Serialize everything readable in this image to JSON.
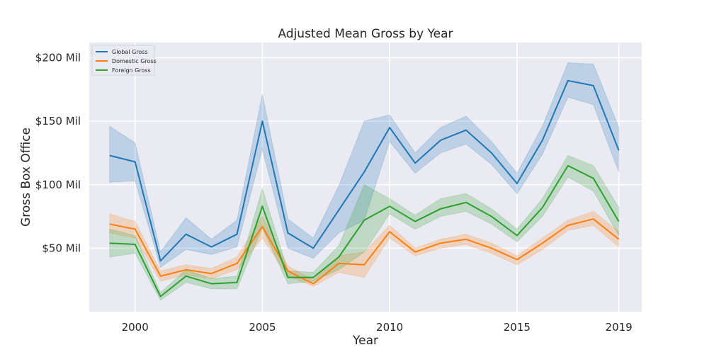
{
  "chart_data": {
    "type": "line",
    "title": "Adjusted Mean Gross by Year",
    "xlabel": "Year",
    "ylabel": "Gross Box Office",
    "xlim": [
      1998.2,
      2019.9
    ],
    "ylim": [
      0,
      212
    ],
    "x_ticks": [
      2000,
      2005,
      2010,
      2015,
      2019
    ],
    "x_tick_labels": [
      "2000",
      "2005",
      "2010",
      "2015",
      "2019"
    ],
    "y_ticks": [
      50,
      100,
      150,
      200
    ],
    "y_tick_labels": [
      "$50 Mil",
      "$100 Mil",
      "$150 Mil",
      "$200 Mil"
    ],
    "grid": true,
    "legend": "top-left",
    "x": [
      1999,
      2000,
      2001,
      2002,
      2003,
      2004,
      2005,
      2006,
      2007,
      2008,
      2009,
      2010,
      2011,
      2012,
      2013,
      2014,
      2015,
      2016,
      2017,
      2018,
      2019
    ],
    "series": [
      {
        "name": "Global Gross",
        "color": "#1f77b4",
        "values": [
          123,
          118,
          40,
          61,
          51,
          61,
          150,
          62,
          50,
          80,
          110,
          145,
          117,
          135,
          143,
          125,
          101,
          135,
          182,
          178,
          127
        ],
        "lower": [
          102,
          103,
          35,
          49,
          45,
          51,
          128,
          50,
          42,
          62,
          72,
          134,
          109,
          125,
          132,
          116,
          93,
          124,
          169,
          163,
          110
        ],
        "upper": [
          146,
          133,
          47,
          74,
          57,
          72,
          171,
          73,
          58,
          99,
          150,
          155,
          125,
          145,
          154,
          134,
          109,
          146,
          196,
          195,
          145
        ]
      },
      {
        "name": "Domestic Gross",
        "color": "#ff7f0e",
        "values": [
          69,
          65,
          28,
          33,
          30,
          38,
          67,
          32,
          22,
          38,
          37,
          63,
          47,
          54,
          57,
          50,
          41,
          54,
          68,
          73,
          57
        ],
        "lower": [
          62,
          58,
          24,
          29,
          26,
          33,
          58,
          28,
          20,
          31,
          27,
          58,
          44,
          50,
          53,
          46,
          37,
          49,
          64,
          68,
          51
        ],
        "upper": [
          77,
          71,
          32,
          37,
          34,
          43,
          75,
          36,
          25,
          44,
          47,
          68,
          50,
          57,
          61,
          54,
          44,
          58,
          72,
          79,
          63
        ]
      },
      {
        "name": "Foreign Gross",
        "color": "#2ca02c",
        "values": [
          54,
          53,
          12,
          28,
          22,
          23,
          83,
          27,
          27,
          43,
          72,
          83,
          71,
          81,
          86,
          75,
          60,
          82,
          115,
          105,
          71
        ],
        "lower": [
          43,
          46,
          9,
          23,
          18,
          18,
          66,
          22,
          24,
          33,
          47,
          77,
          65,
          75,
          79,
          69,
          55,
          75,
          106,
          95,
          60
        ],
        "upper": [
          65,
          60,
          15,
          33,
          26,
          28,
          97,
          32,
          31,
          52,
          100,
          89,
          76,
          89,
          93,
          81,
          65,
          89,
          123,
          115,
          82
        ]
      }
    ]
  }
}
